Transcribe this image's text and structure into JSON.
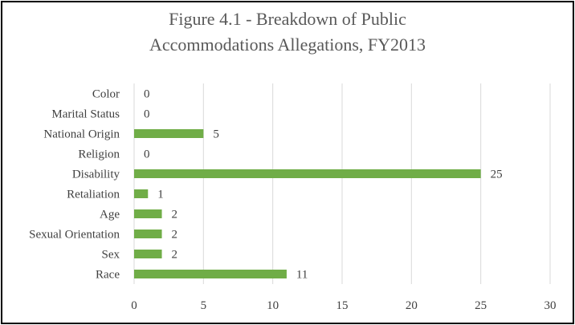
{
  "chart_data": {
    "type": "bar",
    "orientation": "horizontal",
    "title_lines": [
      "Figure 4.1 - Breakdown of Public",
      "Accommodations Allegations, FY2013"
    ],
    "categories": [
      "Color",
      "Marital Status",
      "National Origin",
      "Religion",
      "Disability",
      "Retaliation",
      "Age",
      "Sexual Orientation",
      "Sex",
      "Race"
    ],
    "values": [
      0,
      0,
      5,
      0,
      25,
      1,
      2,
      2,
      2,
      11
    ],
    "xlabel": "",
    "ylabel": "",
    "xlim": [
      0,
      30
    ],
    "xticks": [
      0,
      5,
      10,
      15,
      20,
      25,
      30
    ],
    "grid": "vertical",
    "legend": "none",
    "bar_color": "#70AD47",
    "grid_color": "#D9D9D9",
    "text_color": "#404040"
  }
}
